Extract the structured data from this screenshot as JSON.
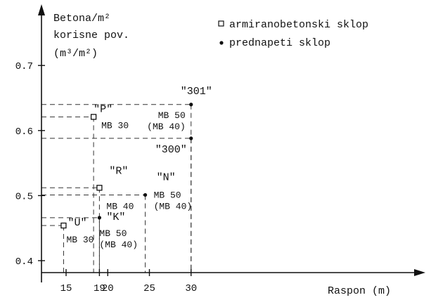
{
  "chart_data": {
    "type": "scatter",
    "title": "",
    "ylabel_lines": [
      "Betona/m²",
      "korisne pov.",
      "(m³/m²)"
    ],
    "xlabel": "Raspon (m)",
    "xlim": [
      12,
      31
    ],
    "ylim": [
      0.37,
      0.76
    ],
    "x_ticks": [
      15,
      19,
      20,
      25,
      30
    ],
    "y_ticks": [
      0.4,
      0.5,
      0.6,
      0.7
    ],
    "grid": false,
    "legend_position": "top-right",
    "legend": [
      {
        "marker": "square",
        "label": "armiranobetonski sklop"
      },
      {
        "marker": "dot",
        "label": "prednapeti sklop"
      }
    ],
    "series": [
      {
        "name": "armiranobetonski sklop",
        "marker": "square",
        "points": [
          {
            "id": "U",
            "x": 14.7,
            "y": 0.454,
            "label": "\"U\"",
            "sub": [
              "MB 30"
            ]
          },
          {
            "id": "P",
            "x": 18.3,
            "y": 0.621,
            "label": "\"P\"",
            "sub": [
              "MB 30"
            ]
          },
          {
            "id": "R",
            "x": 19.0,
            "y": 0.512,
            "label": "\"R\"",
            "sub": [
              "MB 40"
            ]
          }
        ]
      },
      {
        "name": "prednapeti sklop",
        "marker": "dot",
        "points": [
          {
            "id": "K",
            "x": 19.0,
            "y": 0.466,
            "label": "\"K\"",
            "sub": [
              "MB 50",
              "(MB 40)"
            ]
          },
          {
            "id": "N",
            "x": 24.5,
            "y": 0.501,
            "label": "\"N\"",
            "sub": [
              "MB 50",
              "(MB 40)"
            ]
          },
          {
            "id": "300",
            "x": 30.0,
            "y": 0.588,
            "label": "\"300\"",
            "sub": []
          },
          {
            "id": "301",
            "x": 30.0,
            "y": 0.64,
            "label": "\"301\"",
            "sub": [
              "MB 50",
              "(MB 40)"
            ]
          }
        ]
      }
    ]
  }
}
